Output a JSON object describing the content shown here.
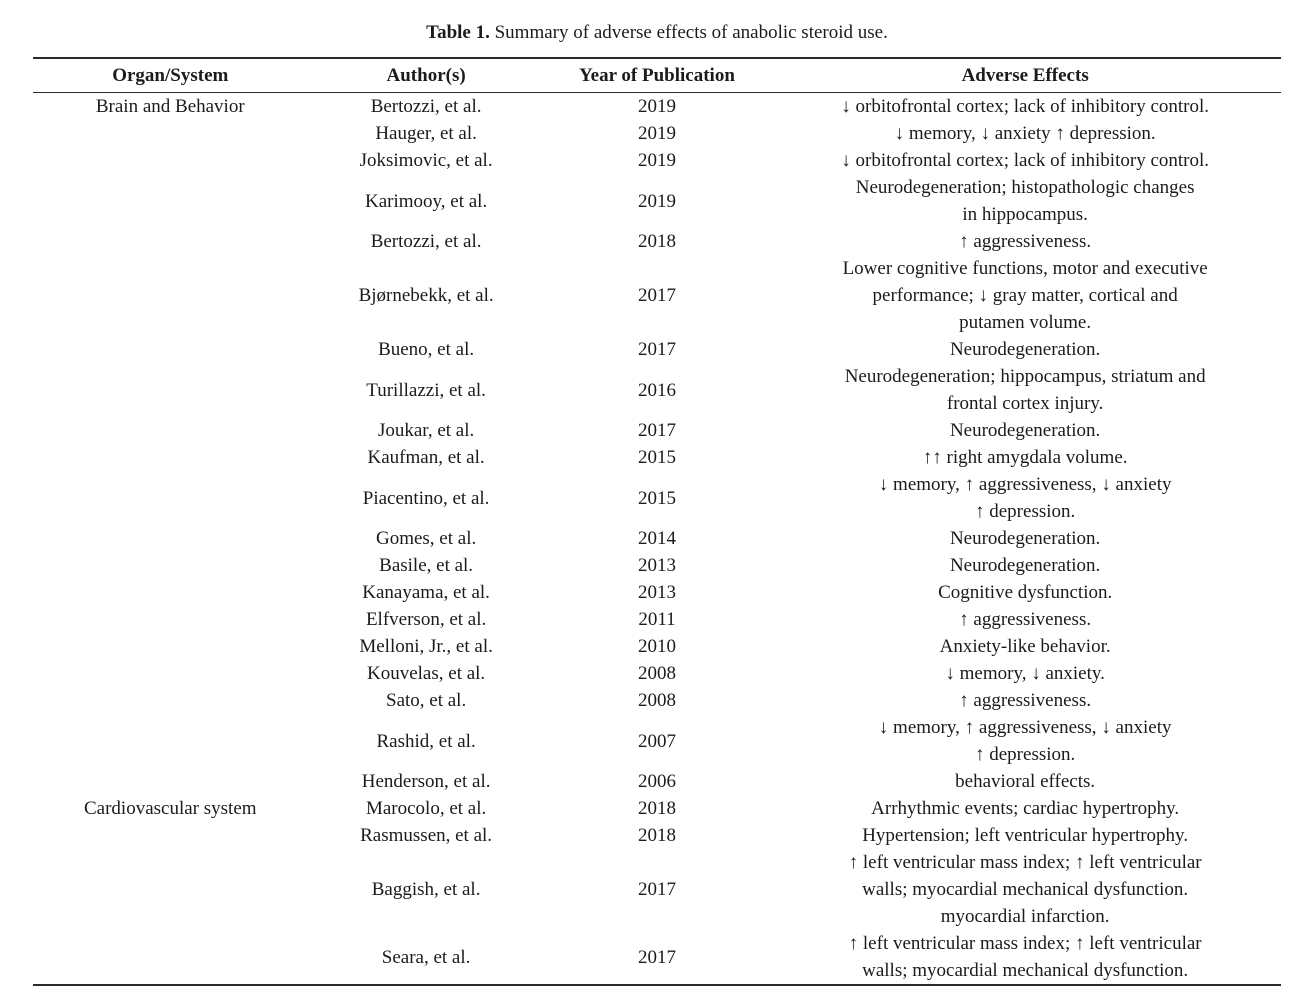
{
  "caption": {
    "label": "Table 1.",
    "text": " Summary of adverse effects of anabolic steroid use."
  },
  "table": {
    "columns": [
      "Organ/System",
      "Author(s)",
      "Year of Publication",
      "Adverse Effects"
    ],
    "groups": [
      {
        "organ": "Brain and Behavior",
        "rows": [
          {
            "author": "Bertozzi, et al.",
            "year": "2019",
            "effects": "↓ orbitofrontal cortex; lack of inhibitory control."
          },
          {
            "author": "Hauger, et al.",
            "year": "2019",
            "effects": "↓ memory, ↓ anxiety ↑ depression."
          },
          {
            "author": "Joksimovic, et al.",
            "year": "2019",
            "effects": "↓ orbitofrontal cortex; lack of inhibitory control."
          },
          {
            "author": "Karimooy, et al.",
            "year": "2019",
            "effects": "Neurodegeneration; histopathologic changes\nin hippocampus."
          },
          {
            "author": "Bertozzi, et al.",
            "year": "2018",
            "effects": "↑ aggressiveness."
          },
          {
            "author": "Bjørnebekk, et al.",
            "year": "2017",
            "effects": "Lower cognitive functions, motor and executive\nperformance; ↓ gray matter, cortical and\nputamen volume."
          },
          {
            "author": "Bueno, et al.",
            "year": "2017",
            "effects": "Neurodegeneration."
          },
          {
            "author": "Turillazzi, et al.",
            "year": "2016",
            "effects": "Neurodegeneration; hippocampus, striatum and\nfrontal cortex injury."
          },
          {
            "author": "Joukar, et al.",
            "year": "2017",
            "effects": "Neurodegeneration."
          },
          {
            "author": "Kaufman, et al.",
            "year": "2015",
            "effects": "↑↑ right amygdala volume."
          },
          {
            "author": "Piacentino, et al.",
            "year": "2015",
            "effects": "↓ memory, ↑ aggressiveness, ↓ anxiety\n↑ depression."
          },
          {
            "author": "Gomes, et al.",
            "year": "2014",
            "effects": "Neurodegeneration."
          },
          {
            "author": "Basile, et al.",
            "year": "2013",
            "effects": "Neurodegeneration."
          },
          {
            "author": "Kanayama, et al.",
            "year": "2013",
            "effects": "Cognitive dysfunction."
          },
          {
            "author": "Elfverson, et al.",
            "year": "2011",
            "effects": "↑ aggressiveness."
          },
          {
            "author": "Melloni, Jr., et al.",
            "year": "2010",
            "effects": "Anxiety-like behavior."
          },
          {
            "author": "Kouvelas, et al.",
            "year": "2008",
            "effects": "↓ memory, ↓ anxiety."
          },
          {
            "author": "Sato, et al.",
            "year": "2008",
            "effects": "↑ aggressiveness."
          },
          {
            "author": "Rashid, et al.",
            "year": "2007",
            "effects": "↓ memory, ↑ aggressiveness, ↓ anxiety\n↑ depression."
          },
          {
            "author": "Henderson, et al.",
            "year": "2006",
            "effects": "behavioral effects."
          }
        ]
      },
      {
        "organ": "Cardiovascular system",
        "rows": [
          {
            "author": "Marocolo, et al.",
            "year": "2018",
            "effects": "Arrhythmic events; cardiac hypertrophy."
          },
          {
            "author": "Rasmussen, et al.",
            "year": "2018",
            "effects": "Hypertension; left ventricular hypertrophy."
          },
          {
            "author": "Baggish, et al.",
            "year": "2017",
            "effects": "↑ left ventricular mass index; ↑ left ventricular\nwalls; myocardial mechanical dysfunction.\nmyocardial infarction."
          },
          {
            "author": "Seara, et al.",
            "year": "2017",
            "effects": "↑ left ventricular mass index; ↑ left ventricular\nwalls; myocardial mechanical dysfunction."
          }
        ]
      }
    ]
  }
}
